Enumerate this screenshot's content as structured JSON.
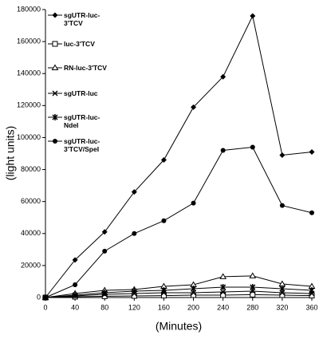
{
  "chart_data": {
    "type": "line",
    "x_label": "(Minutes)",
    "y_label": "(light units)",
    "x": [
      0,
      40,
      80,
      120,
      160,
      200,
      240,
      280,
      320,
      360
    ],
    "xlim": [
      0,
      360
    ],
    "xticks": [
      0,
      40,
      80,
      120,
      160,
      200,
      240,
      280,
      320,
      360
    ],
    "ylim": [
      0,
      180000
    ],
    "yticks": [
      0,
      20000,
      40000,
      60000,
      80000,
      100000,
      120000,
      140000,
      160000,
      180000
    ],
    "grid": false,
    "legend": "upper left",
    "series": [
      {
        "name": "sgUTR-luc-3'TCV",
        "color": "#000000",
        "marker": "diamond",
        "values": [
          0,
          23500,
          41000,
          66000,
          86000,
          119000,
          138000,
          176000,
          89000,
          91000
        ]
      },
      {
        "name": "luc-3'TCV",
        "color": "#000000",
        "marker": "open-square",
        "values": [
          0,
          500,
          800,
          1000,
          1200,
          1500,
          1500,
          1800,
          1500,
          1200
        ]
      },
      {
        "name": "RN-luc-3'TCV",
        "color": "#000000",
        "marker": "triangle",
        "values": [
          0,
          2500,
          4500,
          5000,
          7000,
          8000,
          13000,
          13500,
          8500,
          7000
        ]
      },
      {
        "name": "sgUTR-luc",
        "color": "#000000",
        "marker": "x",
        "values": [
          0,
          1000,
          2000,
          2500,
          3000,
          3000,
          3500,
          4000,
          3000,
          2500
        ]
      },
      {
        "name": "sgUTR-luc-NdeI",
        "color": "#000000",
        "marker": "star",
        "values": [
          0,
          1500,
          3000,
          4000,
          4500,
          5500,
          6500,
          6500,
          5500,
          4500
        ]
      },
      {
        "name": "sgUTR-luc-3'TCV/SpeI",
        "color": "#000000",
        "marker": "circle",
        "values": [
          0,
          8000,
          29000,
          40000,
          48000,
          59000,
          92000,
          94000,
          57500,
          53000
        ]
      }
    ]
  }
}
